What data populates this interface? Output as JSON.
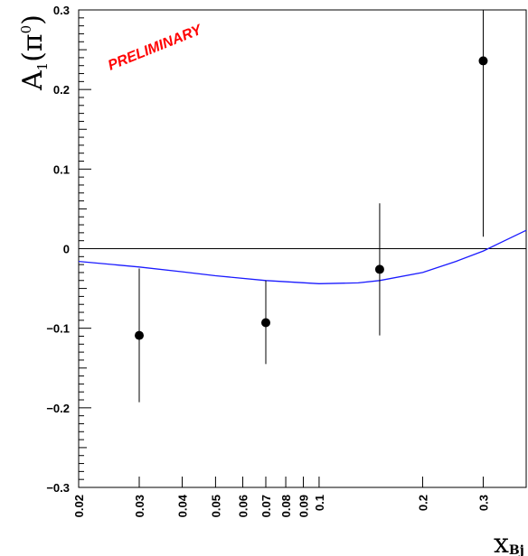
{
  "chart_data": {
    "type": "scatter",
    "title": "",
    "xlabel": "x_Bj",
    "ylabel": "A1(π0)",
    "annotation": "PRELIMINARY",
    "annotation_color": "#ff0000",
    "xscale": "log",
    "xlim": [
      0.02,
      0.4
    ],
    "ylim": [
      -0.3,
      0.3
    ],
    "x_ticks": [
      0.02,
      0.03,
      0.04,
      0.05,
      0.06,
      0.07,
      0.08,
      0.09,
      0.1,
      0.2,
      0.3
    ],
    "x_tick_labels": [
      "0.02",
      "0.03",
      "0.04",
      "0.05",
      "0.06",
      "0.07",
      "0.08",
      "0.09",
      "0.1",
      "0.2",
      "0.3"
    ],
    "y_ticks": [
      -0.3,
      -0.2,
      -0.1,
      0,
      0.1,
      0.2,
      0.3
    ],
    "y_tick_labels": [
      "-0.3",
      "-0.2",
      "-0.1",
      "0",
      "0.1",
      "0.2",
      "0.3"
    ],
    "zero_line": true,
    "grid": false,
    "series": [
      {
        "type": "errorbar",
        "color": "#000000",
        "x": [
          0.03,
          0.07,
          0.15,
          0.3
        ],
        "y": [
          -0.109,
          -0.093,
          -0.026,
          0.236
        ],
        "yerr_low": [
          -0.193,
          -0.145,
          -0.109,
          0.015
        ],
        "yerr_high": [
          -0.025,
          -0.04,
          0.057,
          0.3
        ]
      },
      {
        "type": "line",
        "color": "#1a1aff",
        "x": [
          0.02,
          0.03,
          0.04,
          0.05,
          0.07,
          0.1,
          0.13,
          0.15,
          0.2,
          0.25,
          0.3,
          0.35,
          0.4
        ],
        "y": [
          -0.016,
          -0.023,
          -0.029,
          -0.034,
          -0.04,
          -0.044,
          -0.043,
          -0.04,
          -0.03,
          -0.016,
          -0.003,
          0.011,
          0.023
        ]
      }
    ]
  }
}
